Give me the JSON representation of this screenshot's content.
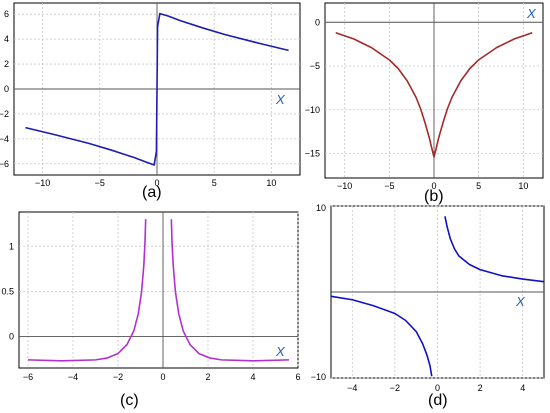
{
  "chart_data": [
    {
      "id": "a",
      "type": "line",
      "panel_label": "(a)",
      "axis_name": "X",
      "xlim": [
        -12.5,
        12.5
      ],
      "ylim": [
        -6.9,
        6.9
      ],
      "x_ticks": [
        -10,
        -5,
        0,
        5,
        10
      ],
      "y_ticks": [
        -6,
        -4,
        -2,
        0,
        2,
        4,
        6
      ],
      "grid": true,
      "series": [
        {
          "color": "#1c1cb0",
          "points": [
            [
              -11.5,
              -3.1
            ],
            [
              -9,
              -3.65
            ],
            [
              -6,
              -4.35
            ],
            [
              -4,
              -4.9
            ],
            [
              -2,
              -5.5
            ],
            [
              -1,
              -5.85
            ],
            [
              -0.25,
              -6.1
            ],
            [
              -0.05,
              -5.0
            ],
            [
              0.0,
              0.0
            ],
            [
              0.05,
              5.0
            ],
            [
              0.25,
              6.05
            ],
            [
              1,
              5.85
            ],
            [
              2,
              5.5
            ],
            [
              4,
              4.9
            ],
            [
              6,
              4.35
            ],
            [
              9,
              3.65
            ],
            [
              11.5,
              3.1
            ]
          ]
        }
      ]
    },
    {
      "id": "b",
      "type": "line",
      "panel_label": "(b)",
      "axis_name": "X",
      "xlim": [
        -12.2,
        12.2
      ],
      "ylim": [
        -17.8,
        2.2
      ],
      "x_ticks": [
        -10,
        -5,
        0,
        5,
        10
      ],
      "y_ticks": [
        0,
        -5,
        -10,
        -15
      ],
      "grid": true,
      "series": [
        {
          "color": "#a52a2a",
          "points": [
            [
              -11,
              -1.2
            ],
            [
              -9,
              -1.9
            ],
            [
              -7,
              -2.9
            ],
            [
              -5,
              -4.3
            ],
            [
              -4,
              -5.3
            ],
            [
              -3,
              -6.7
            ],
            [
              -2,
              -8.6
            ],
            [
              -1.5,
              -9.9
            ],
            [
              -1,
              -11.5
            ],
            [
              -0.5,
              -13.3
            ],
            [
              -0.2,
              -14.6
            ],
            [
              0,
              -15.4
            ],
            [
              0.2,
              -14.6
            ],
            [
              0.5,
              -13.3
            ],
            [
              1,
              -11.5
            ],
            [
              1.5,
              -9.9
            ],
            [
              2,
              -8.6
            ],
            [
              3,
              -6.7
            ],
            [
              4,
              -5.3
            ],
            [
              5,
              -4.3
            ],
            [
              7,
              -2.9
            ],
            [
              9,
              -1.9
            ],
            [
              11,
              -1.2
            ]
          ]
        }
      ]
    },
    {
      "id": "c",
      "type": "line",
      "panel_label": "(c)",
      "axis_name": "X",
      "xlim": [
        -6.4,
        6.0
      ],
      "ylim": [
        -0.35,
        1.38
      ],
      "x_ticks": [
        -6,
        -4,
        -2,
        0,
        2,
        4,
        6
      ],
      "y_ticks": [
        1.0,
        0.5,
        0
      ],
      "grid": true,
      "series": [
        {
          "color": "#b030d0",
          "points": [
            [
              -6,
              -0.26
            ],
            [
              -4.5,
              -0.27
            ],
            [
              -3,
              -0.26
            ],
            [
              -2.5,
              -0.24
            ],
            [
              -2,
              -0.19
            ],
            [
              -1.6,
              -0.09
            ],
            [
              -1.3,
              0.06
            ],
            [
              -1.1,
              0.25
            ],
            [
              -0.95,
              0.5
            ],
            [
              -0.85,
              0.8
            ],
            [
              -0.8,
              1.05
            ],
            [
              -0.77,
              1.3
            ]
          ]
        },
        {
          "color": "#b030d0",
          "points": [
            [
              0.37,
              1.3
            ],
            [
              0.4,
              1.05
            ],
            [
              0.45,
              0.8
            ],
            [
              0.55,
              0.5
            ],
            [
              0.7,
              0.25
            ],
            [
              0.9,
              0.06
            ],
            [
              1.2,
              -0.09
            ],
            [
              1.6,
              -0.19
            ],
            [
              2.1,
              -0.24
            ],
            [
              2.6,
              -0.26
            ],
            [
              4,
              -0.27
            ],
            [
              5.6,
              -0.26
            ]
          ]
        }
      ]
    },
    {
      "id": "d",
      "type": "line",
      "panel_label": "(d)",
      "axis_name": "X",
      "xlim": [
        -5.0,
        5.0
      ],
      "ylim": [
        -10,
        10
      ],
      "x_ticks": [
        -4,
        -2,
        0,
        2,
        4
      ],
      "y_ticks": [
        10,
        -10
      ],
      "grid": true,
      "series": [
        {
          "color": "#1010c8",
          "points": [
            [
              -5,
              -0.5
            ],
            [
              -4,
              -0.9
            ],
            [
              -3,
              -1.6
            ],
            [
              -2,
              -2.5
            ],
            [
              -1.5,
              -3.3
            ],
            [
              -1,
              -4.6
            ],
            [
              -0.7,
              -6.0
            ],
            [
              -0.5,
              -7.3
            ],
            [
              -0.35,
              -8.6
            ],
            [
              -0.27,
              -9.8
            ]
          ]
        },
        {
          "color": "#1010c8",
          "points": [
            [
              0.35,
              8.8
            ],
            [
              0.45,
              7.6
            ],
            [
              0.6,
              6.2
            ],
            [
              0.8,
              5.0
            ],
            [
              1,
              4.2
            ],
            [
              1.5,
              3.2
            ],
            [
              2,
              2.6
            ],
            [
              3,
              1.9
            ],
            [
              4,
              1.5
            ],
            [
              5,
              1.2
            ]
          ]
        }
      ]
    }
  ]
}
